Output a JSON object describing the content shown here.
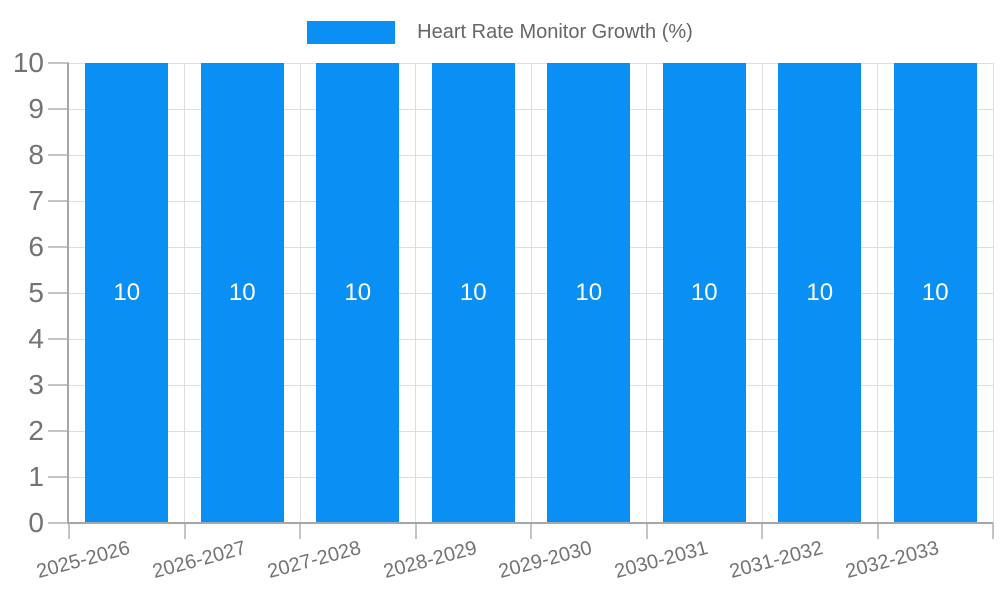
{
  "chart_data": {
    "type": "bar",
    "title": "Heart Rate Monitor Growth (%)",
    "categories": [
      "2025-2026",
      "2026-2027",
      "2027-2028",
      "2028-2029",
      "2029-2030",
      "2030-2031",
      "2031-2032",
      "2032-2033"
    ],
    "series": [
      {
        "name": "Heart Rate Monitor Growth (%)",
        "values": [
          10,
          10,
          10,
          10,
          10,
          10,
          10,
          10
        ]
      }
    ],
    "bar_value_labels": [
      "10",
      "10",
      "10",
      "10",
      "10",
      "10",
      "10",
      "10"
    ],
    "xlabel": "",
    "ylabel": "",
    "ylim": [
      0,
      10
    ],
    "yticks": [
      0,
      1,
      2,
      3,
      4,
      5,
      6,
      7,
      8,
      9,
      10
    ],
    "grid": true,
    "legend_position": "top",
    "x_label_rotation_deg": -15,
    "colors": {
      "bar": "#0a8ff5",
      "bar_label": "#ffffff",
      "grid": "#dedede",
      "axis": "#a6a6a6",
      "tick": "#c4c4c4",
      "tick_text": "#737373",
      "legend_text": "#666666",
      "background": "#ffffff"
    }
  }
}
